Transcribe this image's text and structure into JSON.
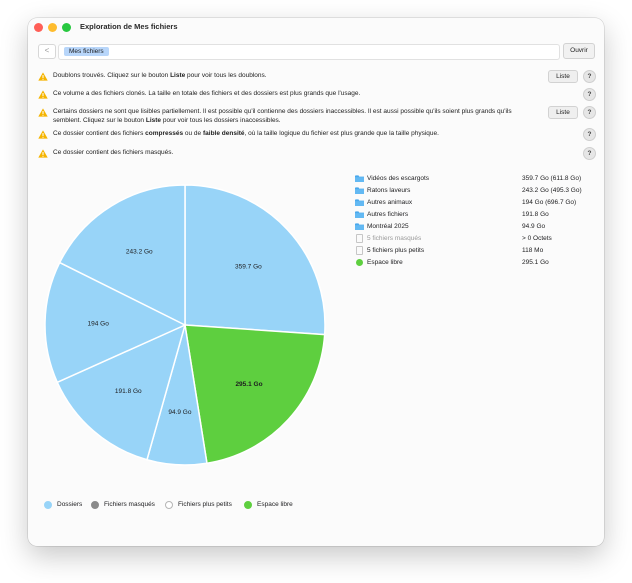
{
  "window": {
    "title": "Exploration de Mes fichiers"
  },
  "pathbar": {
    "back_label": "<",
    "path_token": "Mes fichiers",
    "open_label": "Ouvrir"
  },
  "warnings": [
    {
      "text_html": "Doublons trouvés. Cliquez sur le bouton <b>Liste</b> pour voir tous les doublons.",
      "has_list": true
    },
    {
      "text_html": "Ce volume a des fichiers clonés. La taille en totale des fichiers et des dossiers est plus grands que l'usage.",
      "has_list": false
    },
    {
      "text_html": "Certains dossiers ne sont que lisibles partiellement. Il est possible qu'il contienne des dossiers inaccessibles. Il est aussi possible qu'ils soient plus grands qu'ils semblent. Cliquez sur le bouton <b>Liste</b> pour voir tous les dossiers inaccessibles.",
      "has_list": true
    },
    {
      "text_html": "Ce dossier contient des fichiers <b>compressés</b> ou de <b>faible densité</b>, où la taille logique du fichier est plus grande que la taille physique.",
      "has_list": false
    },
    {
      "text_html": "Ce dossier contient des fichiers masqués.",
      "has_list": false
    }
  ],
  "buttons": {
    "list_label": "Liste",
    "help_label": "?"
  },
  "colors": {
    "folder": "#98d4f8",
    "free": "#5ecf3f",
    "hidden": "#8a8a8a",
    "warning": "#f5b400"
  },
  "chart_data": {
    "type": "pie",
    "unit": "Go",
    "slices": [
      {
        "label": "359.7 Go",
        "value": 359.7,
        "category": "Dossiers"
      },
      {
        "label": "295.1 Go",
        "value": 295.1,
        "category": "Espace libre"
      },
      {
        "label": "94.9 Go",
        "value": 94.9,
        "category": "Dossiers"
      },
      {
        "label": "191.8 Go",
        "value": 191.8,
        "category": "Dossiers"
      },
      {
        "label": "194 Go",
        "value": 194,
        "category": "Dossiers"
      },
      {
        "label": "243.2 Go",
        "value": 243.2,
        "category": "Dossiers"
      }
    ],
    "legend": [
      "Dossiers",
      "Fichiers masqués",
      "Fichiers plus petits",
      "Espace libre"
    ]
  },
  "items": [
    {
      "name": "Vidéos des escargots",
      "size": "359.7 Go (611.8 Go)",
      "icon": "folder-icon",
      "dim": false
    },
    {
      "name": "Ratons laveurs",
      "size": "243.2 Go (495.3 Go)",
      "icon": "folder-icon",
      "dim": false
    },
    {
      "name": "Autres animaux",
      "size": "194 Go (696.7 Go)",
      "icon": "folder-icon",
      "dim": false
    },
    {
      "name": "Autres fichiers",
      "size": "191.8 Go",
      "icon": "folder-icon",
      "dim": false
    },
    {
      "name": "Montréal 2025",
      "size": "94.9 Go",
      "icon": "folder-icon",
      "dim": false
    },
    {
      "name": "5 fichiers masqués",
      "size": "> 0 Octets",
      "icon": "document-icon",
      "dim": true
    },
    {
      "name": "5 fichiers plus petits",
      "size": "118 Mo",
      "icon": "document-icon",
      "dim": false
    },
    {
      "name": "Espace libre",
      "size": "295.1 Go",
      "icon": "green-dot-icon",
      "dim": false
    }
  ],
  "bottom_legend": [
    {
      "label": "Dossiers",
      "color": "#98d4f8",
      "border": "#98d4f8"
    },
    {
      "label": "Fichiers masqués",
      "color": "#8a8a8a",
      "border": "#8a8a8a"
    },
    {
      "label": "Fichiers plus petits",
      "color": "#ffffff",
      "border": "#b5b5b5"
    },
    {
      "label": "Espace libre",
      "color": "#5ecf3f",
      "border": "#5ecf3f"
    }
  ]
}
